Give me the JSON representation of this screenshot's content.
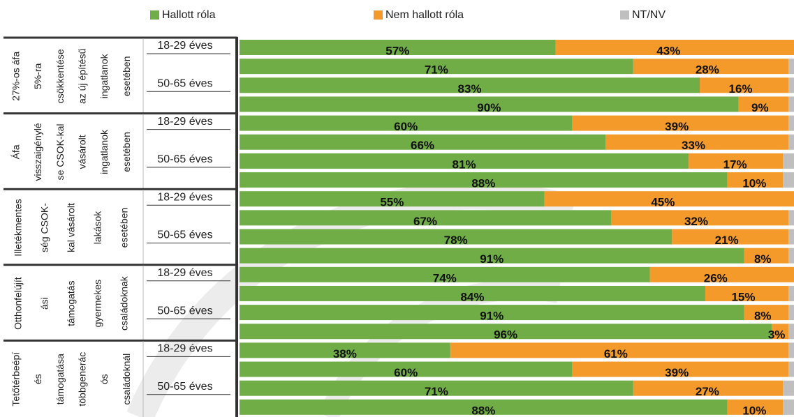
{
  "chart_data": {
    "type": "stacked_bar_horizontal",
    "groups": [
      {
        "label": [
          "27%-os áfa",
          "5%-ra",
          "csökkentése",
          "az új építésű",
          "ingatlanok",
          "esetében"
        ]
      },
      {
        "label": [
          "Áfa",
          "visszaigénylé",
          "se CSOK-kal",
          "vásárolt",
          "ingatlanok",
          "esetében"
        ]
      },
      {
        "label": [
          "Illetékmentes",
          "ség CSOK-",
          "kal vásárolt",
          "lakások",
          "esetében"
        ]
      },
      {
        "label": [
          "Otthonfelújít",
          "ási",
          "támogatás",
          "gyermekes",
          "családoknak"
        ]
      },
      {
        "label": [
          "Tetőtérbeépí",
          "és",
          "támogatása",
          "többgenerác",
          "ós",
          "családoknál"
        ]
      }
    ],
    "categories": [
      "18-29 éves",
      null,
      "50-65 éves",
      null,
      "18-29 éves",
      null,
      "50-65 éves",
      null,
      "18-29 éves",
      null,
      "50-65 éves",
      null,
      "18-29 éves",
      null,
      "50-65 éves",
      null,
      "18-29 éves",
      null,
      "50-65 éves",
      null
    ],
    "xlim": [
      0,
      100
    ],
    "series": [
      {
        "name": "Hallott róla",
        "color": "#70ad47",
        "values": [
          57,
          71,
          83,
          90,
          60,
          66,
          81,
          88,
          55,
          67,
          78,
          91,
          74,
          84,
          91,
          96,
          38,
          60,
          71,
          88
        ],
        "value_labels": [
          "57%",
          "71%",
          "83%",
          "90%",
          "60%",
          "66%",
          "81%",
          "88%",
          "55%",
          "67%",
          "78%",
          "91%",
          "74%",
          "84%",
          "91%",
          "96%",
          "38%",
          "60%",
          "71%",
          "88%"
        ]
      },
      {
        "name": "Nem hallott róla",
        "color": "#f39a2b",
        "values": [
          43,
          28,
          16,
          9,
          39,
          33,
          17,
          10,
          45,
          32,
          21,
          8,
          26,
          15,
          8,
          3,
          61,
          39,
          27,
          10
        ],
        "value_labels": [
          "43%",
          "28%",
          "16%",
          "9%",
          "39%",
          "33%",
          "17%",
          "10%",
          "45%",
          "32%",
          "21%",
          "8%",
          "26%",
          "15%",
          "8%",
          "3%",
          "61%",
          "39%",
          "27%",
          "10%"
        ]
      },
      {
        "name": "NT/NV",
        "color": "#bfbfbf",
        "values": [
          0,
          1,
          1,
          1,
          1,
          1,
          2,
          2,
          0,
          1,
          1,
          1,
          0,
          1,
          1,
          1,
          1,
          1,
          2,
          2
        ]
      }
    ]
  }
}
